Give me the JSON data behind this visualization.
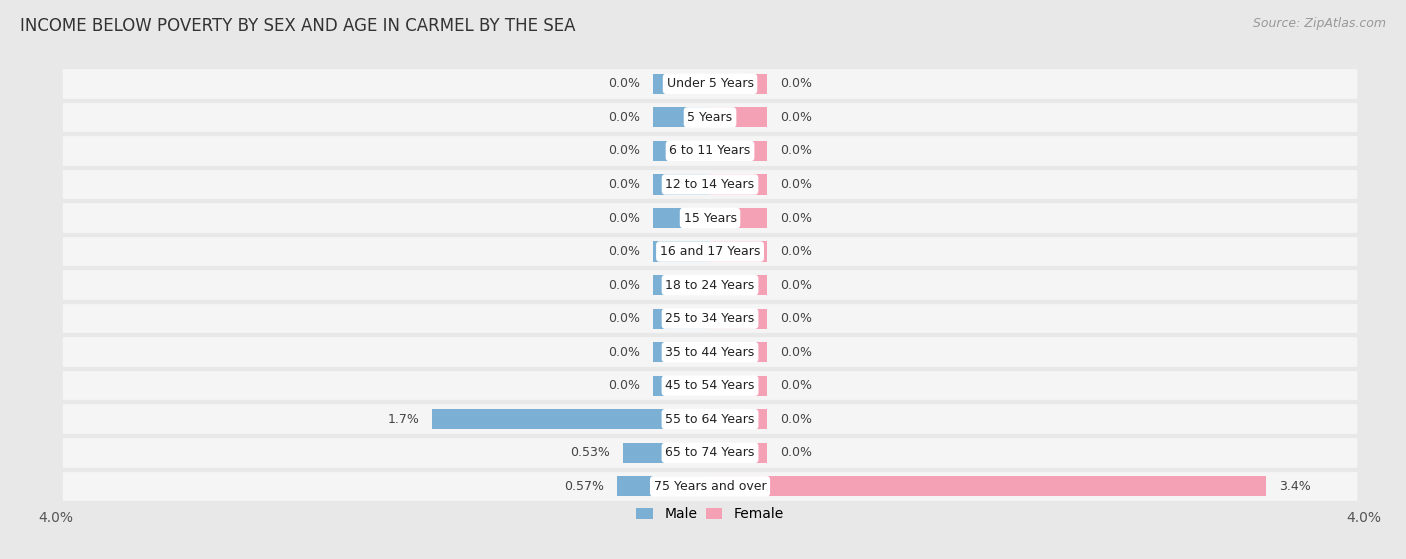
{
  "title": "INCOME BELOW POVERTY BY SEX AND AGE IN CARMEL BY THE SEA",
  "source": "Source: ZipAtlas.com",
  "categories": [
    "Under 5 Years",
    "5 Years",
    "6 to 11 Years",
    "12 to 14 Years",
    "15 Years",
    "16 and 17 Years",
    "18 to 24 Years",
    "25 to 34 Years",
    "35 to 44 Years",
    "45 to 54 Years",
    "55 to 64 Years",
    "65 to 74 Years",
    "75 Years and over"
  ],
  "male_values": [
    0.0,
    0.0,
    0.0,
    0.0,
    0.0,
    0.0,
    0.0,
    0.0,
    0.0,
    0.0,
    1.7,
    0.53,
    0.57
  ],
  "female_values": [
    0.0,
    0.0,
    0.0,
    0.0,
    0.0,
    0.0,
    0.0,
    0.0,
    0.0,
    0.0,
    0.0,
    0.0,
    3.4
  ],
  "male_label_values": [
    "0.0%",
    "0.0%",
    "0.0%",
    "0.0%",
    "0.0%",
    "0.0%",
    "0.0%",
    "0.0%",
    "0.0%",
    "0.0%",
    "1.7%",
    "0.53%",
    "0.57%"
  ],
  "female_label_values": [
    "0.0%",
    "0.0%",
    "0.0%",
    "0.0%",
    "0.0%",
    "0.0%",
    "0.0%",
    "0.0%",
    "0.0%",
    "0.0%",
    "0.0%",
    "0.0%",
    "3.4%"
  ],
  "male_color": "#7bafd4",
  "female_color": "#f4a0b5",
  "male_label": "Male",
  "female_label": "Female",
  "xlim": 4.0,
  "background_color": "#e8e8e8",
  "row_bg_color": "#f5f5f5",
  "bar_height": 0.6,
  "zero_bar_width": 0.35,
  "title_fontsize": 12,
  "source_fontsize": 9,
  "label_fontsize": 9,
  "category_fontsize": 9,
  "axis_label_fontsize": 10
}
